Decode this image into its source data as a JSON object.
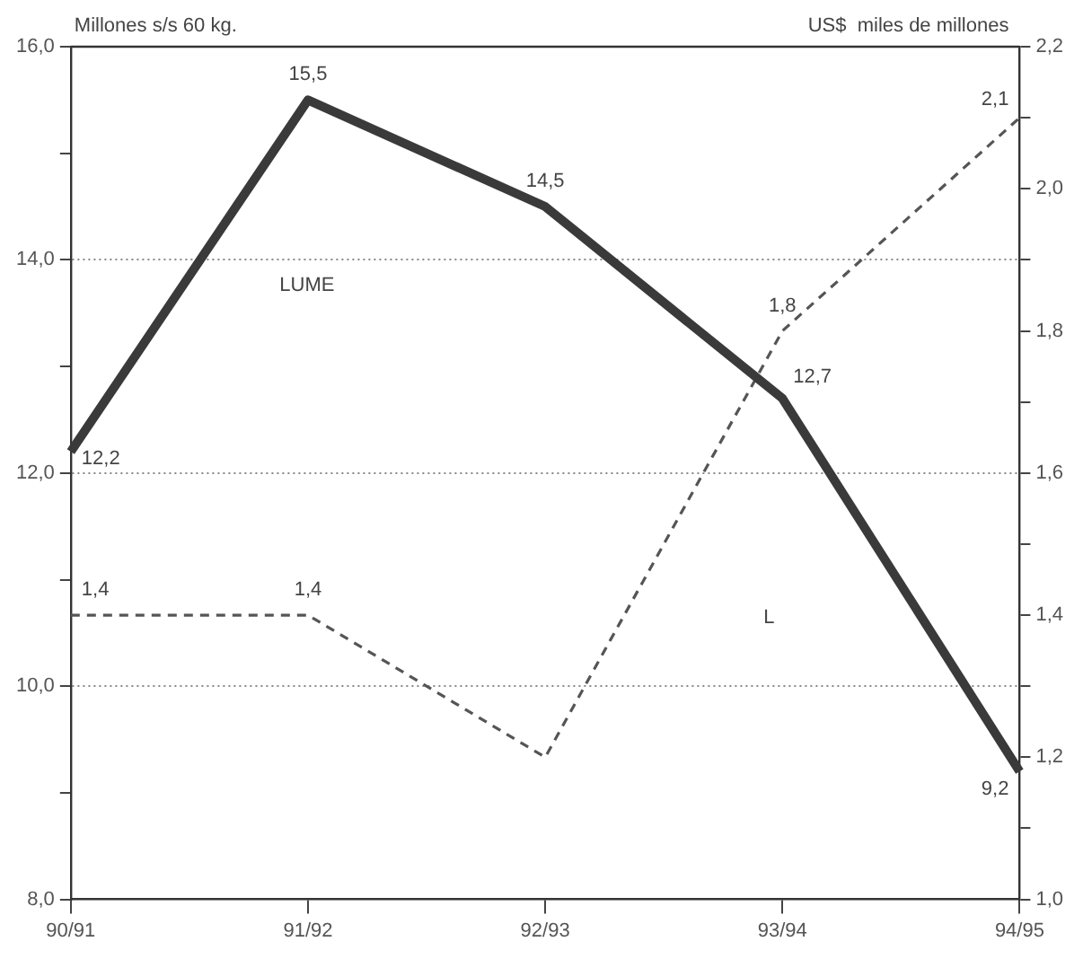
{
  "chart_data": {
    "type": "line",
    "ylabel": "Millones s/s 60 kg.",
    "y2label": "US$  miles de millones",
    "categories": [
      "90/91",
      "91/92",
      "92/93",
      "93/94",
      "94/95"
    ],
    "series": [
      {
        "color": "#3a3a3a",
        "values": [
          12.2,
          15.5,
          14.5,
          12.7,
          9.2
        ],
        "value_labels": [
          "12,2",
          "15,5",
          "14,5",
          "12,7",
          "9,2"
        ],
        "line_style": "solid"
      },
      {
        "color": "#555555",
        "values": [
          1.4,
          1.4,
          1.2,
          1.8,
          2.1
        ],
        "value_labels": [
          "1,4",
          "1,4",
          null,
          "1,8",
          "2,1"
        ],
        "line_style": "dashed",
        "axis": "y2"
      }
    ],
    "ylim": [
      8,
      16
    ],
    "yticks": [
      {
        "value": 8,
        "label": "8,0"
      },
      {
        "value": 9,
        "label": null
      },
      {
        "value": 10,
        "label": "10,0"
      },
      {
        "value": 11,
        "label": null
      },
      {
        "value": 12,
        "label": "12,0"
      },
      {
        "value": 13,
        "label": null
      },
      {
        "value": 14,
        "label": "14,0"
      },
      {
        "value": 15,
        "label": null
      },
      {
        "value": 16,
        "label": "16,0"
      }
    ],
    "y2lim": [
      1.0,
      2.2
    ],
    "y2ticks": [
      {
        "value": 1.0,
        "label": "1,0"
      },
      {
        "value": 1.1,
        "label": null
      },
      {
        "value": 1.2,
        "label": "1,2"
      },
      {
        "value": 1.3,
        "label": null
      },
      {
        "value": 1.4,
        "label": "1,4"
      },
      {
        "value": 1.5,
        "label": null
      },
      {
        "value": 1.6,
        "label": "1,6"
      },
      {
        "value": 1.7,
        "label": null
      },
      {
        "value": 1.8,
        "label": "1,8"
      },
      {
        "value": 1.9,
        "label": null
      },
      {
        "value": 2.0,
        "label": "2,0"
      },
      {
        "value": 2.1,
        "label": null
      },
      {
        "value": 2.2,
        "label": "2,2"
      }
    ],
    "annotations": [
      "LUME",
      "L"
    ],
    "grid": "y",
    "legend": false,
    "marker": "none"
  }
}
